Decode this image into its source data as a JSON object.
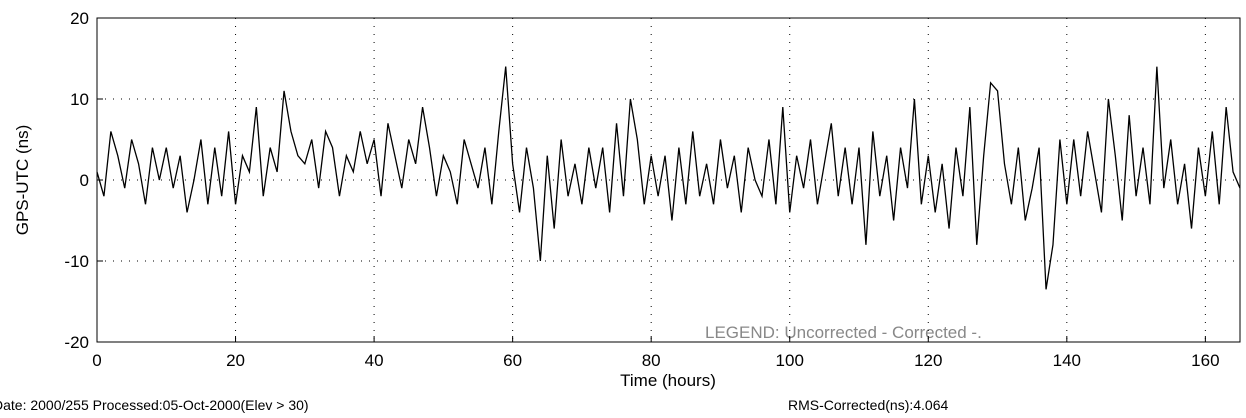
{
  "chart_data": {
    "type": "line",
    "xlabel": "Time (hours)",
    "ylabel": "GPS-UTC (ns)",
    "annotations": [
      "LEGEND: Uncorrected -  Corrected -.",
      "Date: 2000/255 Processed:05-Oct-2000(Elev > 30)",
      "RMS-Corrected(ns):4.064"
    ],
    "xlim": [
      0,
      165
    ],
    "ylim": [
      -20,
      20
    ],
    "xticks": [
      0,
      20,
      40,
      60,
      80,
      100,
      120,
      140,
      160
    ],
    "yticks": [
      -20,
      -10,
      0,
      10,
      20
    ],
    "grid": true,
    "x": [
      0,
      1,
      2,
      3,
      4,
      5,
      6,
      7,
      8,
      9,
      10,
      11,
      12,
      13,
      14,
      15,
      16,
      17,
      18,
      19,
      20,
      21,
      22,
      23,
      24,
      25,
      26,
      27,
      28,
      29,
      30,
      31,
      32,
      33,
      34,
      35,
      36,
      37,
      38,
      39,
      40,
      41,
      42,
      43,
      44,
      45,
      46,
      47,
      48,
      49,
      50,
      51,
      52,
      53,
      54,
      55,
      56,
      57,
      58,
      59,
      60,
      61,
      62,
      63,
      64,
      65,
      66,
      67,
      68,
      69,
      70,
      71,
      72,
      73,
      74,
      75,
      76,
      77,
      78,
      79,
      80,
      81,
      82,
      83,
      84,
      85,
      86,
      87,
      88,
      89,
      90,
      91,
      92,
      93,
      94,
      95,
      96,
      97,
      98,
      99,
      100,
      101,
      102,
      103,
      104,
      105,
      106,
      107,
      108,
      109,
      110,
      111,
      112,
      113,
      114,
      115,
      116,
      117,
      118,
      119,
      120,
      121,
      122,
      123,
      124,
      125,
      126,
      127,
      128,
      129,
      130,
      131,
      132,
      133,
      134,
      135,
      136,
      137,
      138,
      139,
      140,
      141,
      142,
      143,
      144,
      145,
      146,
      147,
      148,
      149,
      150,
      151,
      152,
      153,
      154,
      155,
      156,
      157,
      158,
      159,
      160,
      161,
      162,
      163,
      164,
      165
    ],
    "series": [
      {
        "color": "#000000",
        "values": [
          1,
          -2,
          6,
          3,
          -1,
          5,
          2,
          -3,
          4,
          0,
          4,
          -1,
          3,
          -4,
          0,
          5,
          -3,
          4,
          -2,
          6,
          -3,
          3,
          1,
          9,
          -2,
          4,
          1,
          11,
          6,
          3,
          2,
          5,
          -1,
          6,
          4,
          -2,
          3,
          1,
          6,
          2,
          5,
          -2,
          7,
          3,
          -1,
          5,
          2,
          9,
          4,
          -2,
          3,
          1,
          -3,
          5,
          2,
          -1,
          4,
          -3,
          6,
          14,
          2,
          -4,
          4,
          -1,
          -10,
          3,
          -6,
          5,
          -2,
          2,
          -3,
          4,
          -1,
          4,
          -4,
          7,
          -2,
          10,
          5,
          -3,
          3,
          -2,
          3,
          -5,
          4,
          -3,
          6,
          -2,
          2,
          -3,
          5,
          -1,
          3,
          -4,
          4,
          0,
          -2,
          5,
          -3,
          9,
          -4,
          3,
          -1,
          5,
          -3,
          2,
          7,
          -2,
          4,
          -3,
          4,
          -8,
          6,
          -2,
          3,
          -5,
          4,
          -1,
          10,
          -3,
          3,
          -4,
          2,
          -6,
          4,
          -2,
          9,
          -8,
          3,
          12,
          11,
          2,
          -3,
          4,
          -5,
          -1,
          4,
          -13.5,
          -8,
          5,
          -3,
          5,
          -2,
          6,
          1,
          -4,
          10,
          3,
          -5,
          8,
          -2,
          4,
          -3,
          14,
          -1,
          5,
          -3,
          2,
          -6,
          4,
          -2,
          6,
          -3,
          9,
          1,
          -1
        ]
      }
    ]
  }
}
